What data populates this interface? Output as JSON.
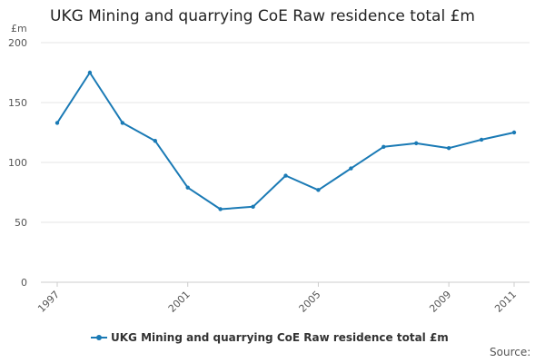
{
  "chart_data": {
    "type": "line",
    "title": "UKG Mining and quarrying CoE Raw residence total £m",
    "ylabel": "£m",
    "xlabel": "",
    "ylim": [
      0,
      200
    ],
    "yticks": [
      0,
      50,
      100,
      150,
      200
    ],
    "x": [
      1997,
      1998,
      1999,
      2000,
      2001,
      2002,
      2003,
      2004,
      2005,
      2006,
      2007,
      2008,
      2009,
      2010,
      2011
    ],
    "xtick_labels": [
      "1997",
      "2001",
      "2005",
      "2009",
      "2011"
    ],
    "series": [
      {
        "name": "UKG Mining and quarrying CoE Raw residence total £m",
        "color": "#1a7ab5",
        "values": [
          133,
          175,
          133,
          118,
          79,
          61,
          63,
          89,
          77,
          95,
          113,
          116,
          112,
          119,
          125
        ]
      }
    ],
    "grid": true,
    "legend": "bottom-center"
  },
  "footer": {
    "source": "Source:"
  }
}
